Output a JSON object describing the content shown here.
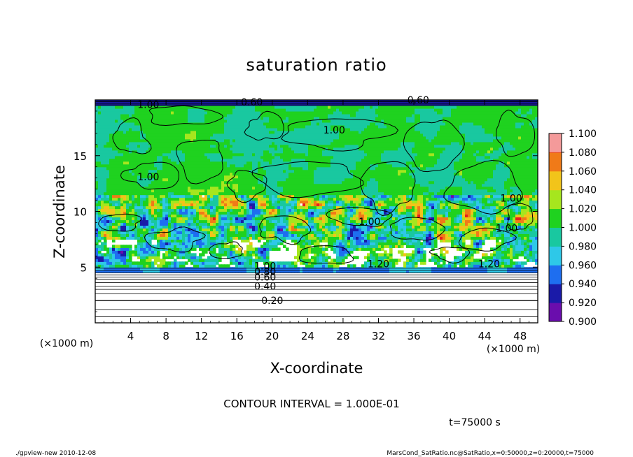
{
  "chart_data": {
    "type": "heatmap",
    "title": "saturation ratio",
    "xlabel": "X-coordinate",
    "ylabel": "Z-coordinate",
    "x_unit_note": "(×1000 m)",
    "z_unit_note": "(×1000 m)",
    "xlim": [
      0,
      50
    ],
    "zlim": [
      0,
      20
    ],
    "x_ticks": [
      "4",
      "8",
      "12",
      "16",
      "20",
      "24",
      "28",
      "32",
      "36",
      "40",
      "44",
      "48"
    ],
    "z_ticks": [
      "5",
      "10",
      "15"
    ],
    "colorbar": {
      "levels": [
        "0.900",
        "0.920",
        "0.940",
        "0.960",
        "0.980",
        "1.000",
        "1.020",
        "1.040",
        "1.060",
        "1.080",
        "1.100"
      ],
      "colors": [
        "#6a0dad",
        "#1a1aa8",
        "#1e6ef0",
        "#2ec8e8",
        "#19c8a0",
        "#1fd21f",
        "#a6e61e",
        "#f2c41a",
        "#f07a18",
        "#e81e1e",
        "#f49a9a"
      ]
    },
    "contour_labels": [
      {
        "text": "0.20",
        "x": 20,
        "z": 2.0
      },
      {
        "text": "0.40",
        "x": 19.2,
        "z": 3.3
      },
      {
        "text": "0.60",
        "x": 19.2,
        "z": 4.1
      },
      {
        "text": "0.80",
        "x": 19.2,
        "z": 4.6
      },
      {
        "text": "1.00",
        "x": 19.2,
        "z": 5.1
      },
      {
        "text": "1.20",
        "x": 32,
        "z": 5.3
      },
      {
        "text": "1.20",
        "x": 44.5,
        "z": 5.3
      },
      {
        "text": "1.00",
        "x": 6,
        "z": 13.1
      },
      {
        "text": "1.00",
        "x": 27,
        "z": 17.3
      },
      {
        "text": "1.00",
        "x": 31,
        "z": 9.1
      },
      {
        "text": "1.00",
        "x": 47,
        "z": 11.2
      },
      {
        "text": "1.00",
        "x": 46.5,
        "z": 8.5
      },
      {
        "text": "1.00",
        "x": 6,
        "z": 19.6
      },
      {
        "text": "0.60",
        "x": 17.7,
        "z": 19.8
      },
      {
        "text": "0.60",
        "x": 36.5,
        "z": 20.0
      }
    ],
    "footer": {
      "contour_interval": "CONTOUR INTERVAL = 1.000E-01",
      "time": "t=75000 s",
      "program": "./gpview-new   2010-12-08",
      "source": "MarsCond_SatRatio.nc@SatRatio,x=0:50000,z=0:20000,t=75000"
    }
  }
}
